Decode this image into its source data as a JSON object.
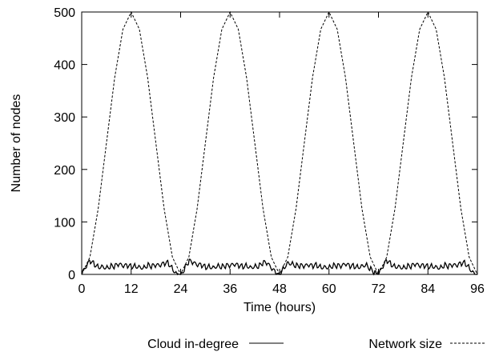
{
  "chart_data": {
    "type": "line",
    "xlabel": "Time (hours)",
    "ylabel": "Number of nodes",
    "xlim": [
      0,
      96
    ],
    "ylim": [
      0,
      500
    ],
    "xticks": [
      "0",
      "12",
      "24",
      "36",
      "48",
      "60",
      "72",
      "84",
      "96"
    ],
    "yticks": [
      "0",
      "100",
      "200",
      "300",
      "400",
      "500"
    ],
    "grid": false,
    "legend_position": "bottom",
    "series": [
      {
        "name": "Cloud in-degree",
        "style": "solid",
        "color": "#000000",
        "x": [
          0,
          1,
          2,
          3,
          4,
          5,
          6,
          7,
          8,
          9,
          10,
          11,
          12,
          13,
          14,
          15,
          16,
          17,
          18,
          19,
          20,
          21,
          22,
          23,
          24,
          25,
          26,
          27,
          28,
          29,
          30,
          31,
          32,
          33,
          34,
          35,
          36,
          37,
          38,
          39,
          40,
          41,
          42,
          43,
          44,
          45,
          46,
          47,
          48,
          49,
          50,
          51,
          52,
          53,
          54,
          55,
          56,
          57,
          58,
          59,
          60,
          61,
          62,
          63,
          64,
          65,
          66,
          67,
          68,
          69,
          70,
          71,
          72,
          73,
          74,
          75,
          76,
          77,
          78,
          79,
          80,
          81,
          82,
          83,
          84,
          85,
          86,
          87,
          88,
          89,
          90,
          91,
          92,
          93,
          94,
          95,
          96
        ],
        "y": [
          0,
          12,
          25,
          20,
          15,
          17,
          14,
          16,
          15,
          18,
          14,
          16,
          15,
          17,
          16,
          14,
          18,
          15,
          16,
          15,
          20,
          22,
          12,
          3,
          0,
          12,
          25,
          21,
          16,
          17,
          14,
          16,
          15,
          18,
          15,
          16,
          15,
          17,
          16,
          15,
          18,
          15,
          17,
          16,
          22,
          20,
          10,
          3,
          0,
          13,
          24,
          22,
          17,
          16,
          14,
          16,
          15,
          18,
          15,
          16,
          15,
          17,
          16,
          14,
          18,
          15,
          16,
          15,
          18,
          20,
          11,
          3,
          0,
          12,
          26,
          20,
          16,
          17,
          14,
          16,
          15,
          18,
          14,
          16,
          15,
          17,
          16,
          14,
          18,
          15,
          16,
          15,
          20,
          22,
          14,
          5,
          2
        ]
      },
      {
        "name": "Network size",
        "style": "dashed",
        "color": "#000000",
        "x": [
          0,
          2,
          4,
          6,
          8,
          10,
          12,
          14,
          16,
          18,
          20,
          22,
          24,
          26,
          28,
          30,
          32,
          34,
          36,
          38,
          40,
          42,
          44,
          46,
          48,
          50,
          52,
          54,
          56,
          58,
          60,
          62,
          64,
          66,
          68,
          70,
          72,
          74,
          76,
          78,
          80,
          82,
          84,
          86,
          88,
          90,
          92,
          94,
          96
        ],
        "y": [
          0,
          33,
          125,
          250,
          375,
          467,
          500,
          467,
          375,
          250,
          125,
          33,
          0,
          33,
          125,
          250,
          375,
          467,
          500,
          467,
          375,
          250,
          125,
          33,
          0,
          33,
          125,
          250,
          375,
          467,
          500,
          467,
          375,
          250,
          125,
          33,
          0,
          33,
          125,
          250,
          375,
          467,
          500,
          467,
          375,
          250,
          125,
          33,
          0
        ]
      }
    ]
  }
}
